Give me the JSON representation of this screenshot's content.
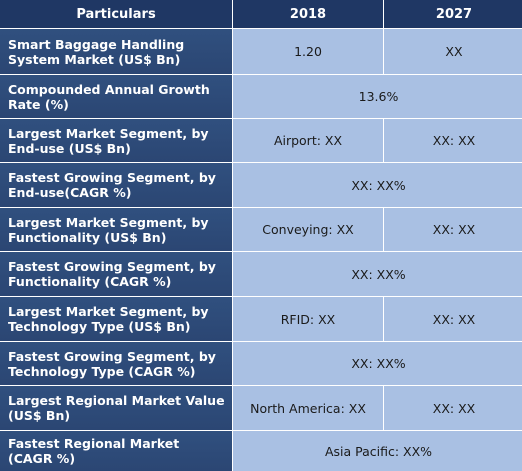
{
  "header": {
    "col_particulars": "Particulars",
    "col_2018": "2018",
    "col_2027": "2027"
  },
  "rows": [
    {
      "label": "Smart Baggage Handling System Market (US$ Bn)",
      "v2018": "1.20",
      "v2027": "XX"
    },
    {
      "label": "Compounded Annual Growth Rate (%)",
      "merged": "13.6%"
    },
    {
      "label": "Largest Market Segment, by End-use (US$ Bn)",
      "v2018": "Airport: XX",
      "v2027": "XX: XX"
    },
    {
      "label": "Fastest Growing Segment, by End-use(CAGR %)",
      "merged": "XX: XX%"
    },
    {
      "label": "Largest Market Segment, by Functionality (US$ Bn)",
      "v2018": "Conveying: XX",
      "v2027": "XX: XX"
    },
    {
      "label": "Fastest Growing Segment, by Functionality (CAGR %)",
      "merged": "XX: XX%"
    },
    {
      "label": "Largest Market Segment, by Technology Type (US$ Bn)",
      "v2018": "RFID: XX",
      "v2027": "XX: XX"
    },
    {
      "label": "Fastest Growing Segment, by Technology Type (CAGR %)",
      "merged": "XX: XX%"
    },
    {
      "label": "Largest Regional Market Value (US$ Bn)",
      "v2018": "North America: XX",
      "v2027": "XX: XX"
    },
    {
      "label": "Fastest Regional Market (CAGR %)",
      "merged": "Asia Pacific: XX%"
    }
  ]
}
